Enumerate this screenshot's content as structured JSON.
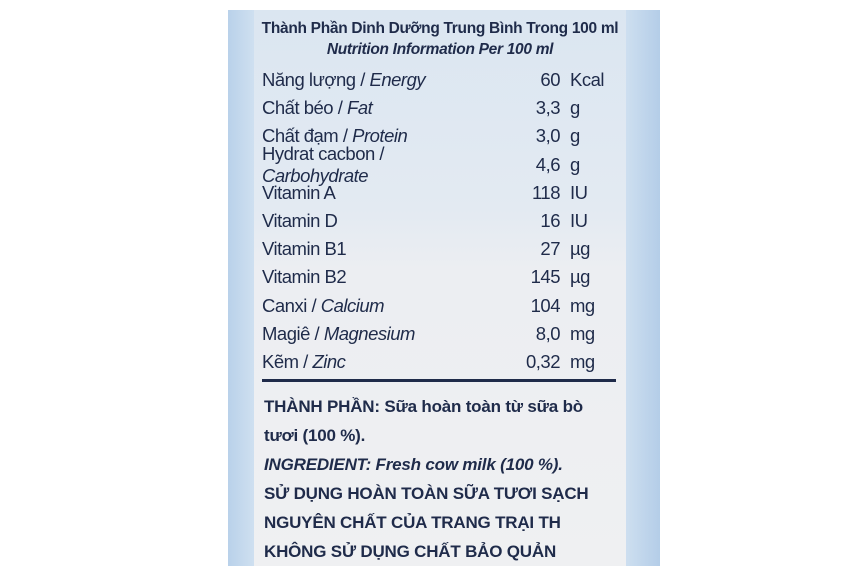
{
  "heading_vi": "Thành Phần Dinh Dưỡng Trung Bình Trong 100 ml",
  "heading_en": "Nutrition Information Per 100 ml",
  "nutrients": [
    {
      "vi": "Năng lượng / ",
      "en": "Energy",
      "value": "60",
      "unit": "Kcal"
    },
    {
      "vi": "Chất béo / ",
      "en": "Fat",
      "value": "3,3",
      "unit": "g"
    },
    {
      "vi": "Chất đạm / ",
      "en": "Protein",
      "value": "3,0",
      "unit": "g"
    },
    {
      "vi": "Hydrat cacbon / ",
      "en": "Carbohydrate",
      "value": "4,6",
      "unit": "g"
    },
    {
      "vi": "Vitamin A",
      "en": "",
      "value": "118",
      "unit": "IU"
    },
    {
      "vi": "Vitamin D",
      "en": "",
      "value": "16",
      "unit": "IU"
    },
    {
      "vi": "Vitamin B1",
      "en": "",
      "value": "27",
      "unit": "µg"
    },
    {
      "vi": "Vitamin B2",
      "en": "",
      "value": "145",
      "unit": "µg"
    },
    {
      "vi": "Canxi / ",
      "en": "Calcium",
      "value": "104",
      "unit": "mg"
    },
    {
      "vi": "Magiê / ",
      "en": "Magnesium",
      "value": "8,0",
      "unit": "mg"
    },
    {
      "vi": "Kẽm / ",
      "en": "Zinc",
      "value": "0,32",
      "unit": "mg"
    }
  ],
  "ingredients": {
    "line1": "THÀNH PHẦN: Sữa hoàn toàn từ sữa bò",
    "line2": "tươi (100 %).",
    "line3": "INGREDIENT: Fresh cow milk (100 %).",
    "line4": "SỬ DỤNG HOÀN TOÀN SỮA TƯƠI SẠCH",
    "line5": "NGUYÊN CHẤT CỦA TRANG TRẠI TH",
    "line6": "KHÔNG SỬ DỤNG CHẤT BẢO QUẢN"
  },
  "colors": {
    "text": "#1f2b4a",
    "panel": "#e3eaf2",
    "edge": "#b9d1ea"
  }
}
